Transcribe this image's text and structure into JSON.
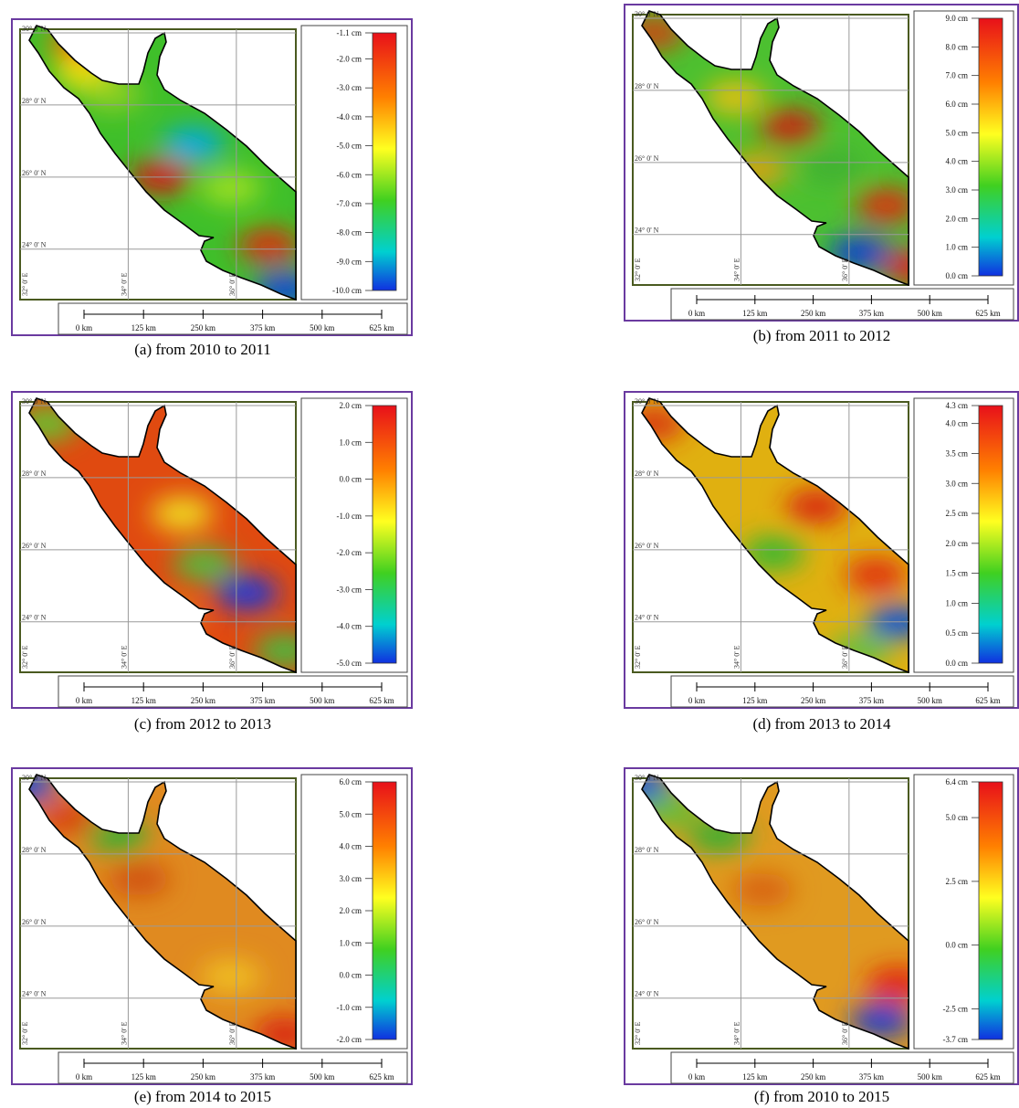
{
  "common": {
    "lat_labels": [
      "30° 0' N",
      "28° 0' N",
      "26° 0' N",
      "24° 0' N"
    ],
    "lon_labels": [
      "32° 0' E",
      "34° 0' E",
      "36° 0' E"
    ],
    "scale_labels": [
      "0 km",
      "125 km",
      "250 km",
      "375 km",
      "500 km",
      "625 km"
    ]
  },
  "panels": [
    {
      "caption": "(a) from 2010 to 2011",
      "legend_ticks": [
        "-1.1 cm",
        "-2.0 cm",
        "-3.0 cm",
        "-4.0 cm",
        "-5.0 cm",
        "-6.0 cm",
        "-7.0 cm",
        "-8.0 cm",
        "-9.0 cm",
        "-10.0 cm"
      ],
      "legend_min": -10.0,
      "legend_max": -1.1,
      "base_color": "#3fbf2a",
      "blobs": [
        {
          "lon": 33.1,
          "lat": 29.7,
          "color": "#ff6a00"
        },
        {
          "lon": 33.2,
          "lat": 28.9,
          "color": "#f0e010"
        },
        {
          "lon": 34.6,
          "lat": 26.0,
          "color": "#d81515"
        },
        {
          "lon": 35.2,
          "lat": 26.9,
          "color": "#00a8e8"
        },
        {
          "lon": 35.9,
          "lat": 25.7,
          "color": "#a0e020"
        },
        {
          "lon": 36.6,
          "lat": 24.1,
          "color": "#e02a10"
        },
        {
          "lon": 36.9,
          "lat": 22.9,
          "color": "#1040e0"
        },
        {
          "lon": 33.7,
          "lat": 28.3,
          "color": "#8fd020"
        }
      ]
    },
    {
      "caption": "(b) from 2011 to 2012",
      "legend_ticks": [
        "9.0 cm",
        "8.0 cm",
        "7.0 cm",
        "6.0 cm",
        "5.0 cm",
        "4.0 cm",
        "3.0 cm",
        "2.0 cm",
        "1.0 cm",
        "0.0 cm"
      ],
      "legend_min": 0.0,
      "legend_max": 9.0,
      "base_color": "#4cc030",
      "blobs": [
        {
          "lon": 32.4,
          "lat": 29.6,
          "color": "#d04010"
        },
        {
          "lon": 34.9,
          "lat": 27.0,
          "color": "#d01a10"
        },
        {
          "lon": 35.7,
          "lat": 25.9,
          "color": "#40b030"
        },
        {
          "lon": 36.7,
          "lat": 24.8,
          "color": "#e02a10"
        },
        {
          "lon": 36.2,
          "lat": 23.5,
          "color": "#1038d8"
        },
        {
          "lon": 37.2,
          "lat": 23.1,
          "color": "#e02010"
        },
        {
          "lon": 33.9,
          "lat": 27.8,
          "color": "#e8c010"
        },
        {
          "lon": 34.3,
          "lat": 25.8,
          "color": "#e0a010"
        }
      ]
    },
    {
      "caption": "(c) from 2012 to 2013",
      "legend_ticks": [
        "2.0 cm",
        "1.0 cm",
        "0.0 cm",
        "-1.0 cm",
        "-2.0 cm",
        "-3.0 cm",
        "-4.0 cm",
        "-5.0 cm"
      ],
      "legend_min": -5.0,
      "legend_max": 2.0,
      "base_color": "#e04a10",
      "blobs": [
        {
          "lon": 32.5,
          "lat": 29.5,
          "color": "#60c830"
        },
        {
          "lon": 35.0,
          "lat": 27.0,
          "color": "#f0e020"
        },
        {
          "lon": 36.2,
          "lat": 24.8,
          "color": "#1838e0"
        },
        {
          "lon": 35.4,
          "lat": 25.6,
          "color": "#50c040"
        },
        {
          "lon": 36.9,
          "lat": 23.2,
          "color": "#40c040"
        },
        {
          "lon": 34.7,
          "lat": 24.1,
          "color": "#e8a010"
        }
      ]
    },
    {
      "caption": "(d) from 2013 to 2014",
      "legend_ticks": [
        "4.3 cm",
        "4.0 cm",
        "3.5 cm",
        "3.0 cm",
        "2.5 cm",
        "2.0 cm",
        "1.5 cm",
        "1.0 cm",
        "0.5 cm",
        "0.0 cm"
      ],
      "legend_min": 0.0,
      "legend_max": 4.3,
      "base_color": "#e0b010",
      "blobs": [
        {
          "lon": 32.4,
          "lat": 29.5,
          "color": "#d83010"
        },
        {
          "lon": 35.4,
          "lat": 27.2,
          "color": "#d82010"
        },
        {
          "lon": 34.6,
          "lat": 25.9,
          "color": "#30b830"
        },
        {
          "lon": 36.5,
          "lat": 25.3,
          "color": "#e02a10"
        },
        {
          "lon": 36.9,
          "lat": 24.0,
          "color": "#0050e0"
        },
        {
          "lon": 36.2,
          "lat": 23.2,
          "color": "#60c040"
        }
      ]
    },
    {
      "caption": "(e) from 2014 to 2015",
      "legend_ticks": [
        "6.0 cm",
        "5.0 cm",
        "4.0 cm",
        "3.0 cm",
        "2.0 cm",
        "1.0 cm",
        "0.0 cm",
        "-1.0 cm",
        "-2.0 cm"
      ],
      "legend_min": -2.0,
      "legend_max": 6.0,
      "base_color": "#e08a20",
      "blobs": [
        {
          "lon": 32.1,
          "lat": 29.9,
          "color": "#1048e0"
        },
        {
          "lon": 32.9,
          "lat": 29.0,
          "color": "#d84010"
        },
        {
          "lon": 33.8,
          "lat": 28.5,
          "color": "#30b030"
        },
        {
          "lon": 34.2,
          "lat": 27.3,
          "color": "#d05010"
        },
        {
          "lon": 35.9,
          "lat": 24.6,
          "color": "#f0c020"
        },
        {
          "lon": 36.9,
          "lat": 23.0,
          "color": "#d82010"
        }
      ]
    },
    {
      "caption": "(f) from 2010 to 2015",
      "legend_ticks": [
        "6.4 cm",
        "5.0 cm",
        "2.5 cm",
        "0.0 cm",
        "-2.5 cm",
        "-3.7 cm"
      ],
      "legend_min": -3.7,
      "legend_max": 6.4,
      "base_color": "#e09a20",
      "blobs": [
        {
          "lon": 32.1,
          "lat": 29.9,
          "color": "#1050e0"
        },
        {
          "lon": 32.7,
          "lat": 29.2,
          "color": "#60c030"
        },
        {
          "lon": 33.6,
          "lat": 28.5,
          "color": "#30b030"
        },
        {
          "lon": 36.9,
          "lat": 24.4,
          "color": "#e02010"
        },
        {
          "lon": 36.6,
          "lat": 23.4,
          "color": "#1038d8"
        },
        {
          "lon": 34.4,
          "lat": 27.0,
          "color": "#d86010"
        }
      ]
    }
  ]
}
